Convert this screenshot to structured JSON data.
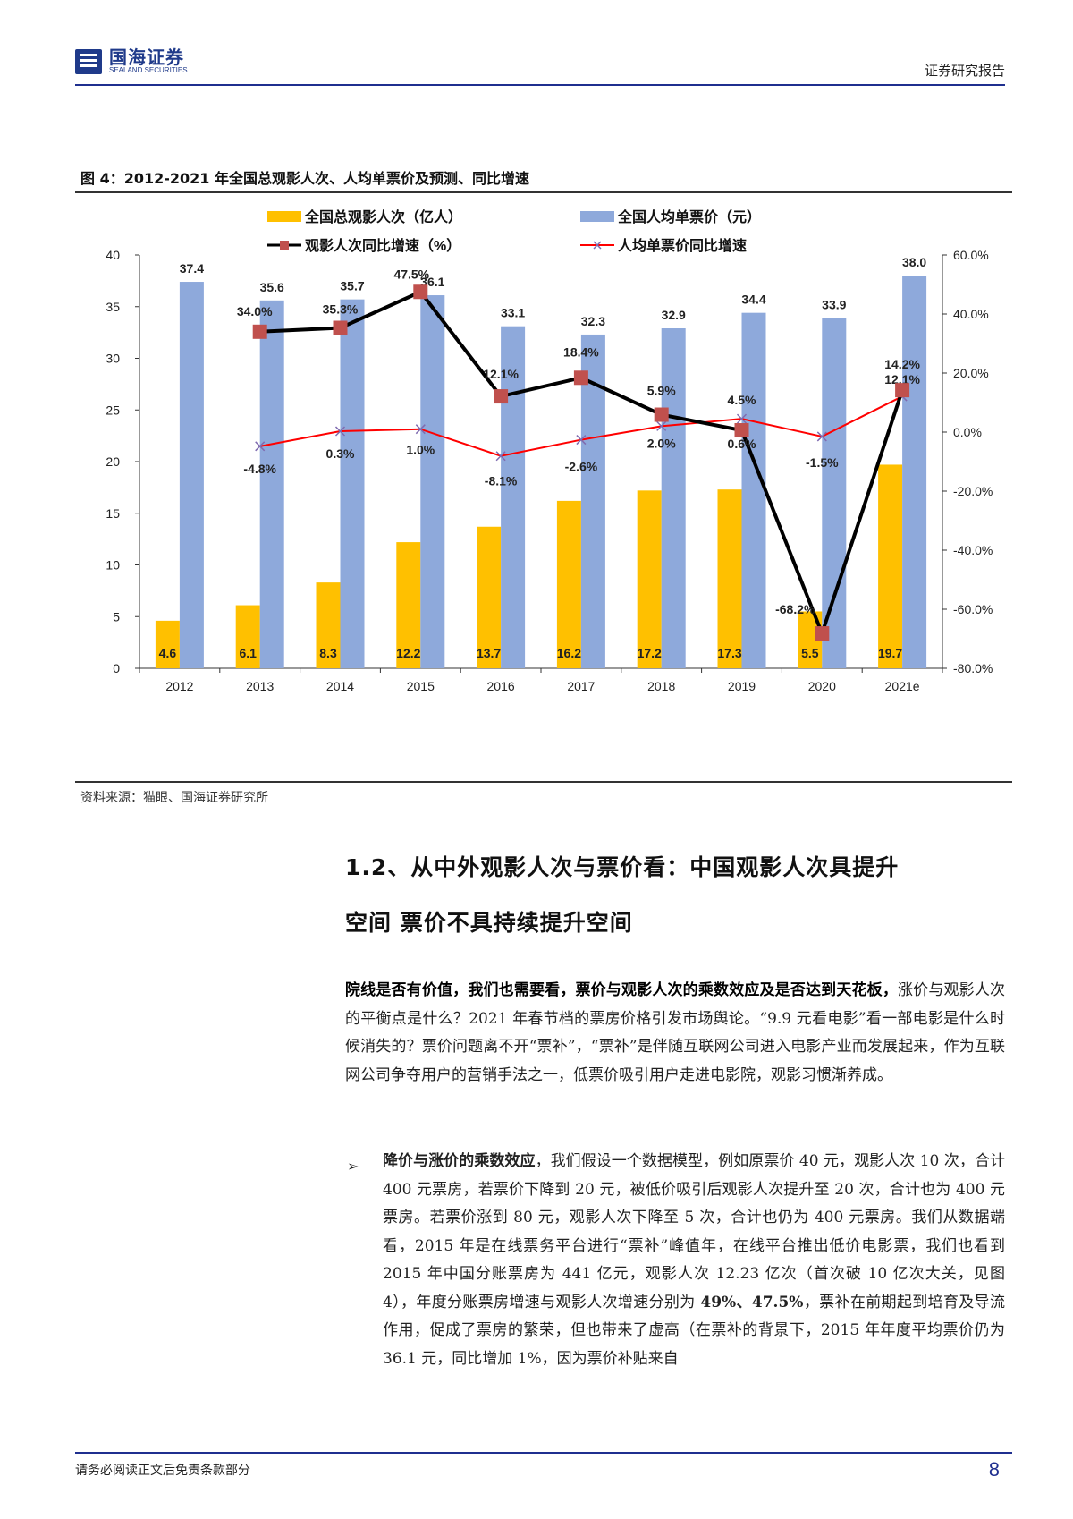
{
  "header": {
    "logo_cn": "国海证券",
    "logo_en": "SEALAND SECURITIES",
    "right_label": "证券研究报告"
  },
  "figure": {
    "title": "图 4：2012-2021 年全国总观影人次、人均单票价及预测、同比增速",
    "source": "资料来源：猫眼、国海证券研究所"
  },
  "chart_data": {
    "type": "bar",
    "title": "2012-2021 年全国总观影人次、人均单票价及预测、同比增速",
    "categories": [
      "2012",
      "2013",
      "2014",
      "2015",
      "2016",
      "2017",
      "2018",
      "2019",
      "2020",
      "2021e"
    ],
    "series": [
      {
        "name": "全国总观影人次（亿人）",
        "type": "bar",
        "axis": "left",
        "color": "#FFC000",
        "values": [
          4.6,
          6.1,
          8.3,
          12.2,
          13.7,
          16.2,
          17.2,
          17.3,
          5.5,
          19.7
        ]
      },
      {
        "name": "全国人均单票价（元）",
        "type": "bar",
        "axis": "left",
        "color": "#8EA9DB",
        "values": [
          37.4,
          35.6,
          35.7,
          36.1,
          33.1,
          32.3,
          32.9,
          34.4,
          33.9,
          38.0
        ]
      },
      {
        "name": "观影人次同比增速（%）",
        "type": "line",
        "axis": "right",
        "color": "#000000",
        "marker_color": "#C0504D",
        "values": [
          null,
          34.0,
          35.3,
          47.5,
          12.1,
          18.4,
          5.9,
          0.6,
          -68.2,
          14.2
        ],
        "labels": [
          "",
          "34.0%",
          "35.3%",
          "47.5%",
          "12.1%",
          "18.4%",
          "5.9%",
          "0.6%",
          "-68.2%",
          "14.2%"
        ]
      },
      {
        "name": "人均单票价同比增速",
        "type": "line",
        "axis": "right",
        "color": "#FF0000",
        "marker_color": "#7F6BB0",
        "values": [
          null,
          -4.8,
          0.3,
          1.0,
          -8.1,
          -2.6,
          2.0,
          4.5,
          -1.5,
          12.1
        ],
        "labels": [
          "",
          "-4.8%",
          "0.3%",
          "1.0%",
          "-8.1%",
          "-2.6%",
          "2.0%",
          "4.5%",
          "-1.5%",
          "12.1%"
        ]
      }
    ],
    "left_axis": {
      "ylim": [
        0,
        40
      ],
      "ticks": [
        "0",
        "5",
        "10",
        "15",
        "20",
        "25",
        "30",
        "35",
        "40"
      ]
    },
    "right_axis": {
      "ylim": [
        -80,
        60
      ],
      "ticks": [
        "-80.0%",
        "-60.0%",
        "-40.0%",
        "-20.0%",
        "0.0%",
        "20.0%",
        "40.0%",
        "60.0%"
      ]
    },
    "xlabel": "",
    "ylabel": "",
    "grid": false,
    "legend_position": "top"
  },
  "section": {
    "heading_line1": "1.2、从中外观影人次与票价看：中国观影人次具提升",
    "heading_line2": "空间 票价不具持续提升空间"
  },
  "paragraph1": {
    "bold": "院线是否有价值，我们也需要看，票价与观影人次的乘数效应及是否达到天花板，",
    "text": "涨价与观影人次的平衡点是什么？2021 年春节档的票房价格引发市场舆论。“9.9 元看电影”看一部电影是什么时候消失的？票价问题离不开“票补”，“票补”是伴随互联网公司进入电影产业而发展起来，作为互联网公司争夺用户的营销手法之一，低票价吸引用户走进电影院，观影习惯渐养成。"
  },
  "bullet1": {
    "marker": "➢",
    "bold": "降价与涨价的乘数效应",
    "text_a": "，我们假设一个数据模型，例如原票价 40 元，观影人次 10 次，合计 400 元票房，若票价下降到 20 元，被低价吸引后观影人次提升至 20 次，合计也为 400 元票房。若票价涨到 80 元，观影人次下降至 5 次，合计也仍为 400 元票房。我们从数据端看，2015 年是在线票务平台进行“票补”峰值年，在线平台推出低价电影票，我们也看到 2015 年中国分账票房为 441 亿元，观影人次 12.23 亿次（首次破 10 亿次大关，见图 4），年度分账票房增速与观影人次增速分别为 ",
    "bold2": "49%、47.5%",
    "text_b": "，票补在前期起到培育及导流作用，促成了票房的繁荣，但也带来了虚高（在票补的背景下，2015 年年度平均票价仍为 36.1 元，同比增加 1%，因为票价补贴来自"
  },
  "footer": {
    "disclaimer": "请务必阅读正文后免责条款部分",
    "page_number": "8"
  }
}
